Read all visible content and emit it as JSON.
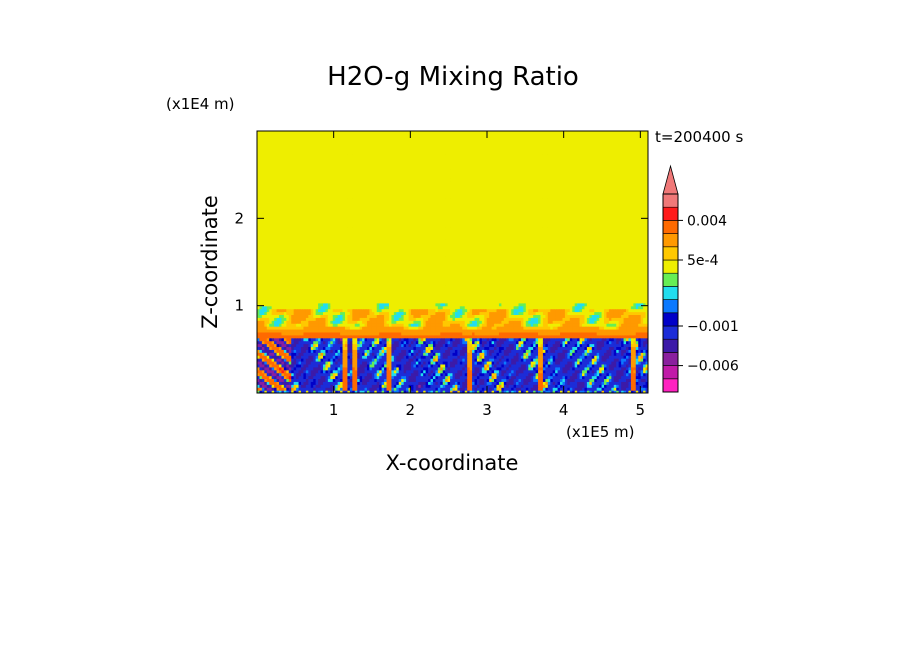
{
  "chart_data": {
    "type": "heatmap",
    "title": "H2O-g Mixing Ratio",
    "time_label": "t=200400 s",
    "xlabel": "X-coordinate",
    "ylabel": "Z-coordinate",
    "x_unit": "(x1E5 m)",
    "y_unit": "(x1E4 m)",
    "xlim": [
      0,
      5.1
    ],
    "ylim": [
      0,
      3
    ],
    "xticks": [
      {
        "value": 1,
        "label": "1"
      },
      {
        "value": 2,
        "label": "2"
      },
      {
        "value": 3,
        "label": "3"
      },
      {
        "value": 4,
        "label": "4"
      },
      {
        "value": 5,
        "label": "5"
      }
    ],
    "yticks": [
      {
        "value": 1,
        "label": "1"
      },
      {
        "value": 2,
        "label": "2"
      }
    ],
    "colorbar": {
      "colors": [
        "#ff22c0",
        "#c01aa8",
        "#8a1f9e",
        "#3c1aa8",
        "#1c2cd8",
        "#0000c8",
        "#0b79ff",
        "#22ddee",
        "#66ee55",
        "#eeee00",
        "#ffc800",
        "#ff9900",
        "#ff6a00",
        "#ff1a1a",
        "#f07878"
      ],
      "bounds": [
        -0.0099,
        -0.008,
        -0.006,
        -0.004,
        -0.0025,
        -0.001,
        -0.0006,
        -0.0003,
        0,
        0.0002,
        0.0005,
        0.0008,
        0.002,
        0.004,
        0.006,
        0.009
      ],
      "labels": [
        {
          "value": 0.004,
          "label": "0.004"
        },
        {
          "value": 0.0005,
          "label": "5e-4"
        },
        {
          "value": -0.001,
          "label": "−0.001"
        },
        {
          "value": -0.006,
          "label": "−0.006"
        }
      ],
      "extend": "max"
    },
    "regions": {
      "upper_value": 0.0002,
      "mid_layer_z": [
        0.62,
        1.03
      ],
      "low_layer_z": [
        0,
        0.62
      ],
      "mid_layer_typical": 0.0005,
      "low_layer_typical": -0.001
    }
  }
}
